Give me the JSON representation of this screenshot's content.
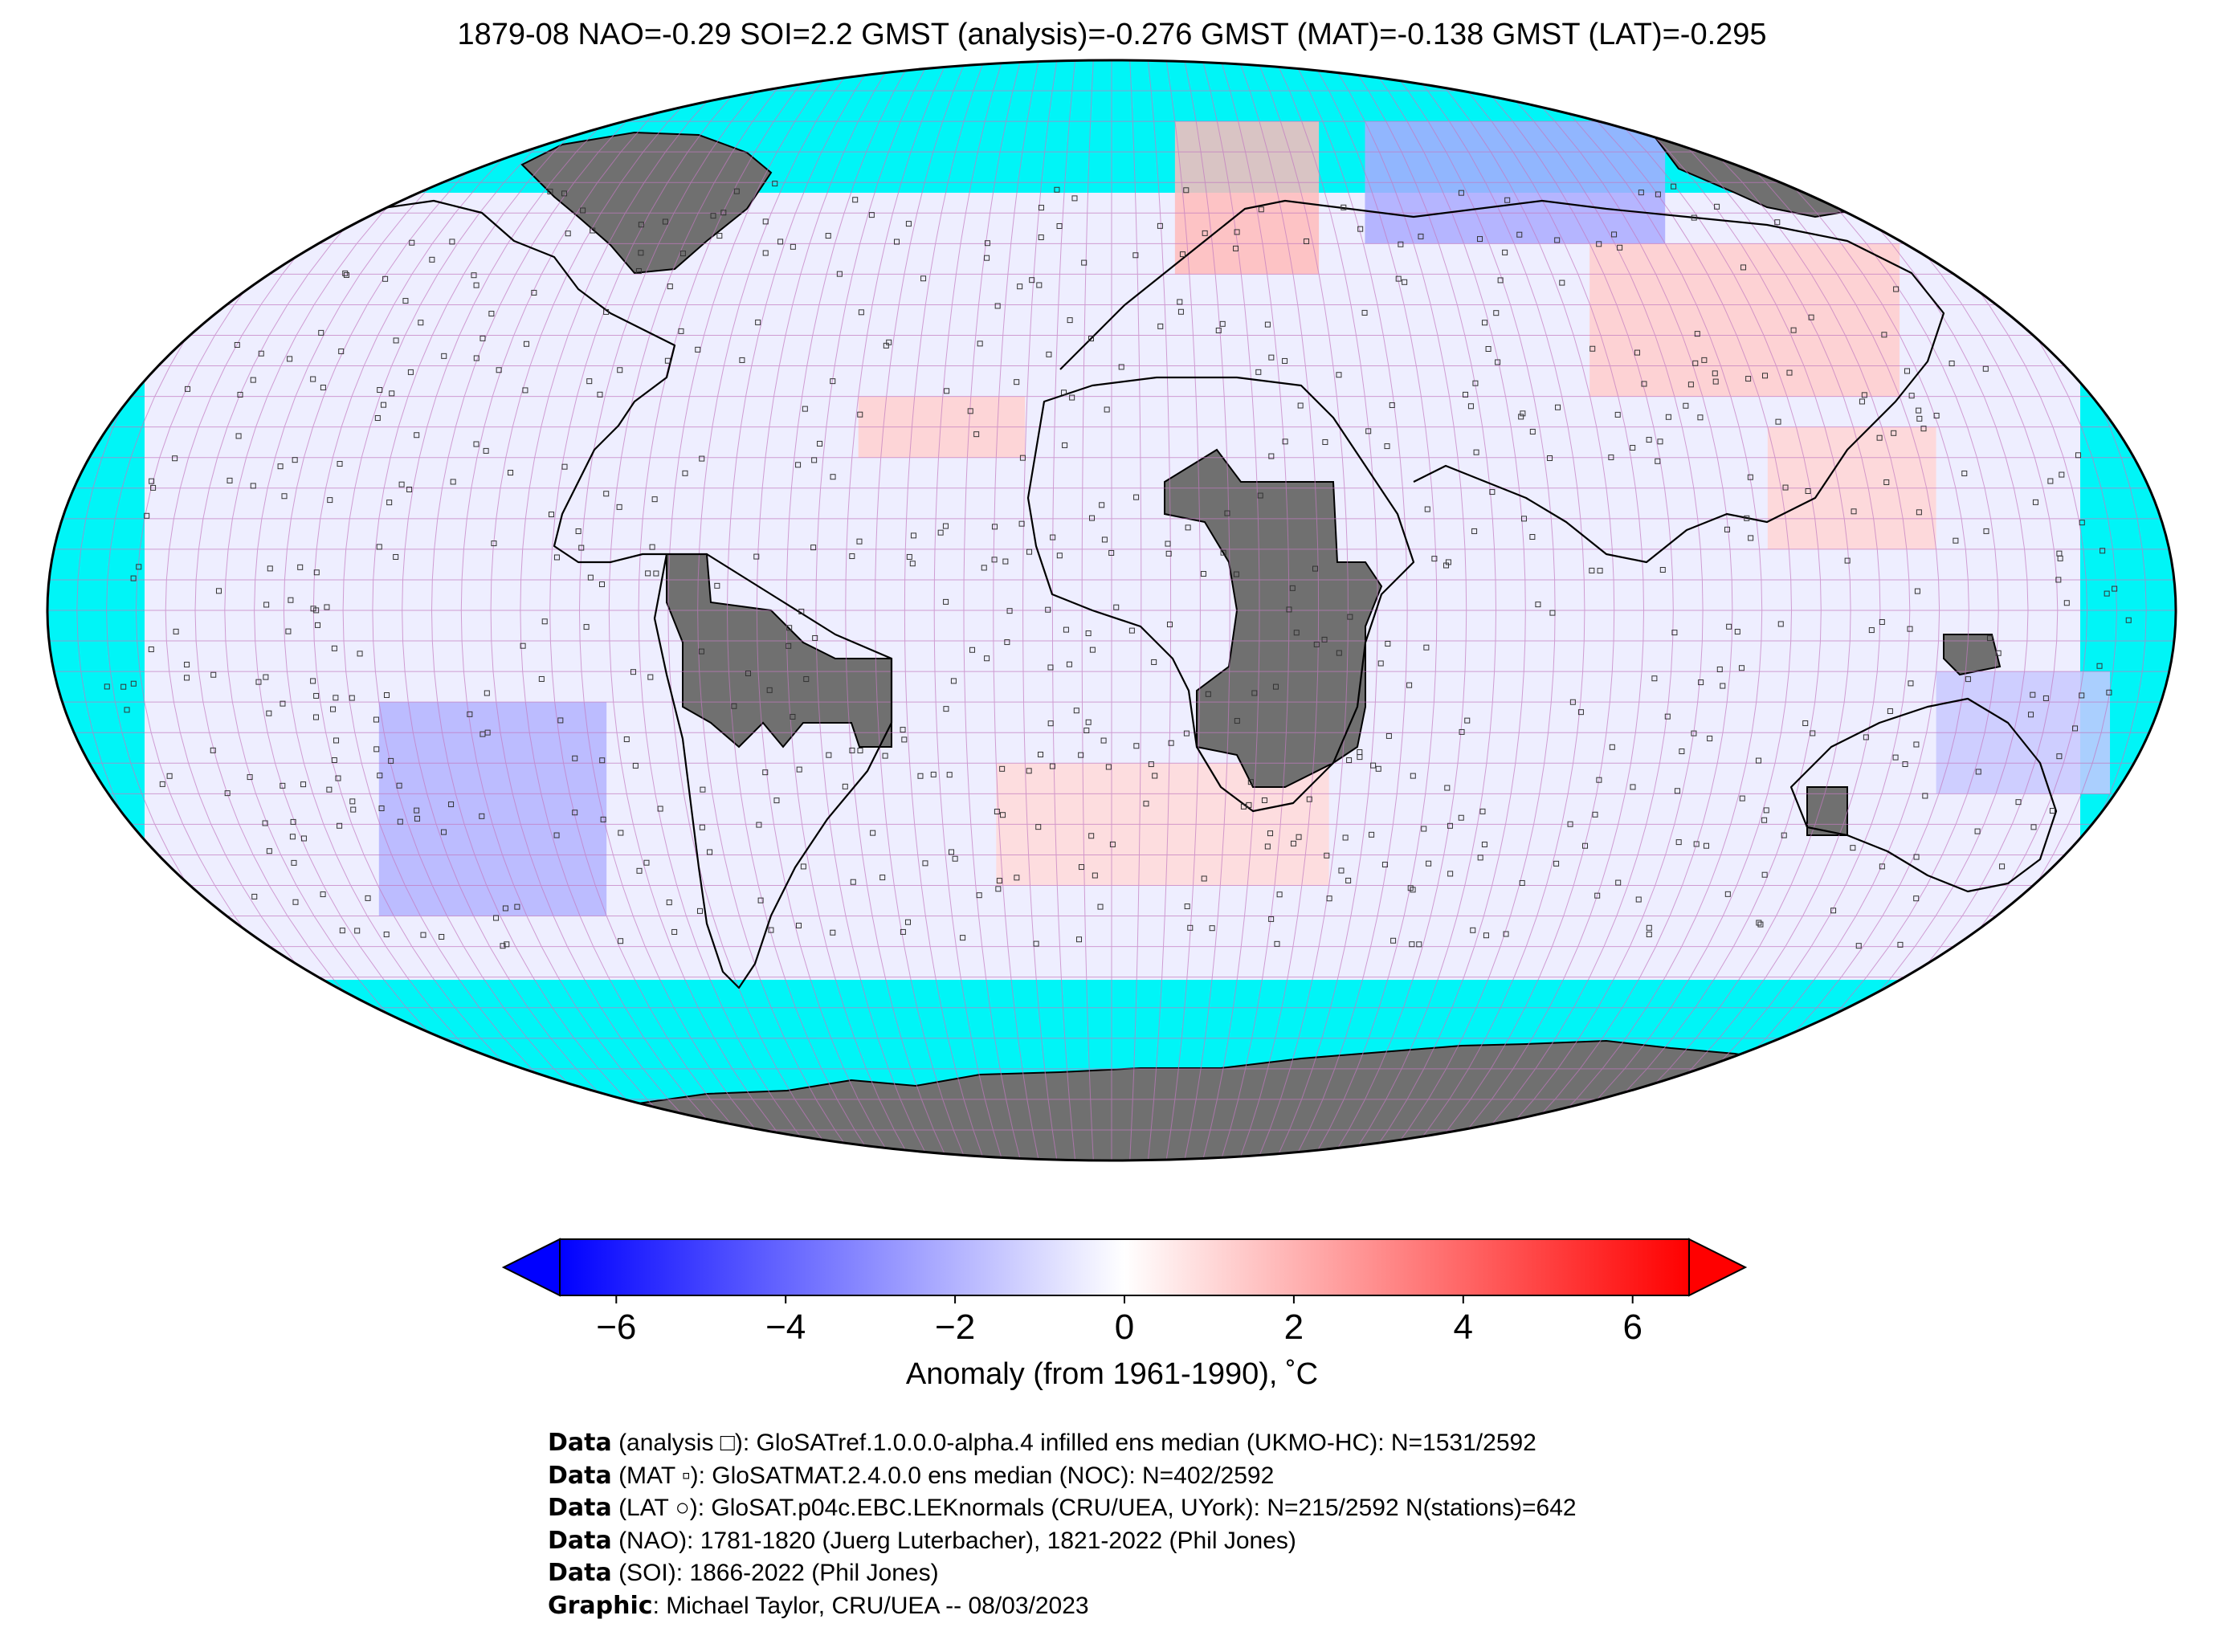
{
  "title": "1879-08 NAO=-0.29 SOI=2.2 GMST (analysis)=-0.276 GMST (MAT)=-0.138 GMST (LAT)=-0.295",
  "colors": {
    "ocean_missing": "#00f5f7",
    "land_missing": "#707070",
    "gridline": "#c27ac0",
    "coast": "#000000",
    "scale_min": "#0000ff",
    "scale_mid": "#ffffff",
    "scale_max": "#ff0000"
  },
  "colorbar": {
    "ticks": [
      "−6",
      "−4",
      "−2",
      "0",
      "2",
      "4",
      "6"
    ],
    "label": "Anomaly (from 1961-1990), ˚C",
    "min": -6,
    "max": 6
  },
  "credits": [
    {
      "bold": "Data",
      "text": " (analysis □): GloSATref.1.0.0.0-alpha.4 infilled ens median (UKMO-HC): N=1531/2592"
    },
    {
      "bold": "Data",
      "text": " (MAT ▫): GloSATMAT.2.4.0.0 ens median (NOC): N=402/2592"
    },
    {
      "bold": "Data",
      "text": " (LAT ○): GloSAT.p04c.EBC.LEKnormals (CRU/UEA, UYork): N=215/2592 N(stations)=642"
    },
    {
      "bold": "Data",
      "text": " (NAO): 1781-1820 (Juerg Luterbacher), 1821-2022 (Phil Jones)"
    },
    {
      "bold": "Data",
      "text": " (SOI): 1866-2022 (Phil Jones)"
    },
    {
      "bold": "Graphic",
      "text": ": Michael Taylor, CRU/UEA -- 08/03/2023"
    }
  ],
  "map": {
    "projection": "Robinson",
    "grid_resolution_deg": 5,
    "anomaly_bands": [
      {
        "lat": [
          60,
          80
        ],
        "lon": [
          60,
          110
        ],
        "value": -2.0
      },
      {
        "lat": [
          55,
          80
        ],
        "lon": [
          15,
          40
        ],
        "value": 1.6
      },
      {
        "lat": [
          35,
          60
        ],
        "lon": [
          95,
          140
        ],
        "value": 1.2
      },
      {
        "lat": [
          25,
          35
        ],
        "lon": [
          -45,
          -15
        ],
        "value": 1.1
      },
      {
        "lat": [
          -50,
          -15
        ],
        "lon": [
          -125,
          -95
        ],
        "value": -1.8
      },
      {
        "lat": [
          -45,
          -25
        ],
        "lon": [
          -20,
          40
        ],
        "value": 0.9
      },
      {
        "lat": [
          -30,
          -10
        ],
        "lon": [
          140,
          175
        ],
        "value": -1.3
      },
      {
        "lat": [
          10,
          30
        ],
        "lon": [
          115,
          140
        ],
        "value": 1.0
      }
    ]
  }
}
